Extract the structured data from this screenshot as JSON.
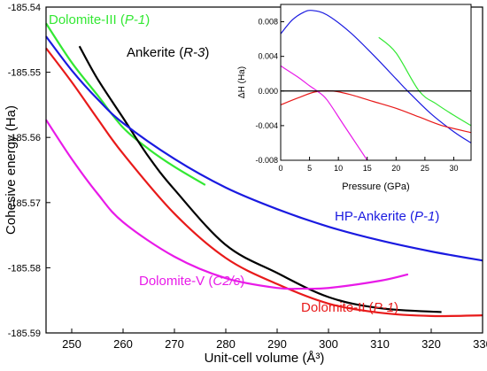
{
  "chart_data": [
    {
      "type": "line",
      "title": "",
      "xlabel": "Unit-cell volume (Å³)",
      "ylabel": "Cohesive energy (Ha)",
      "xlim": [
        245,
        330
      ],
      "ylim": [
        -185.59,
        -185.54
      ],
      "xticks": [
        250,
        260,
        270,
        280,
        290,
        300,
        310,
        320,
        330
      ],
      "yticks": [
        -185.54,
        -185.55,
        -185.56,
        -185.57,
        -185.58,
        -185.59
      ],
      "grid": false,
      "legend": "none",
      "series": [
        {
          "name": "Dolomite-III",
          "name_suffix": "P-1",
          "color": "#33e833",
          "points": [
            [
              245,
              -185.5425
            ],
            [
              250,
              -185.5485
            ],
            [
              255,
              -185.5535
            ],
            [
              260,
              -185.5585
            ],
            [
              265,
              -185.5618
            ],
            [
              270,
              -185.5645
            ],
            [
              276,
              -185.5673
            ]
          ]
        },
        {
          "name": "Ankerite",
          "name_suffix": "R-3",
          "color": "#000000",
          "points": [
            [
              251.5,
              -185.546
            ],
            [
              255,
              -185.551
            ],
            [
              260,
              -185.557
            ],
            [
              265,
              -185.563
            ],
            [
              270,
              -185.568
            ],
            [
              280,
              -185.5765
            ],
            [
              290,
              -185.5808
            ],
            [
              300,
              -185.5845
            ],
            [
              310,
              -185.5862
            ],
            [
              322,
              -185.5868
            ]
          ]
        },
        {
          "name": "HP-Ankerite",
          "name_suffix": "P-1",
          "color": "#1a1ae0",
          "points": [
            [
              245,
              -185.5445
            ],
            [
              250,
              -185.5497
            ],
            [
              255,
              -185.5541
            ],
            [
              260,
              -185.5578
            ],
            [
              270,
              -185.5633
            ],
            [
              280,
              -185.5677
            ],
            [
              290,
              -185.571
            ],
            [
              300,
              -185.5737
            ],
            [
              310,
              -185.5758
            ],
            [
              320,
              -185.5775
            ],
            [
              330,
              -185.5789
            ]
          ]
        },
        {
          "name": "Dolomite-II",
          "name_suffix": "P-1",
          "color": "#e81a1a",
          "points": [
            [
              245,
              -185.5463
            ],
            [
              250,
              -185.5515
            ],
            [
              255,
              -185.5571
            ],
            [
              260,
              -185.5625
            ],
            [
              270,
              -185.5717
            ],
            [
              280,
              -185.5785
            ],
            [
              290,
              -185.5825
            ],
            [
              300,
              -185.5855
            ],
            [
              310,
              -185.5869
            ],
            [
              320,
              -185.5874
            ],
            [
              330,
              -185.5873
            ]
          ]
        },
        {
          "name": "Dolomite-V",
          "name_suffix": "C2/c",
          "color": "#e81ae8",
          "points": [
            [
              245,
              -185.5573
            ],
            [
              250,
              -185.5633
            ],
            [
              255,
              -185.5686
            ],
            [
              260,
              -185.573
            ],
            [
              270,
              -185.5783
            ],
            [
              280,
              -185.5816
            ],
            [
              290,
              -185.5831
            ],
            [
              295,
              -185.5832
            ],
            [
              300,
              -185.5831
            ],
            [
              310,
              -185.582
            ],
            [
              315.5,
              -185.581
            ]
          ]
        }
      ]
    },
    {
      "type": "line",
      "title": "",
      "xlabel": "Pressure (GPa)",
      "ylabel": "ΔH (Ha)",
      "xlim": [
        0,
        33
      ],
      "ylim": [
        -0.008,
        0.01
      ],
      "xticks": [
        0,
        5,
        10,
        15,
        20,
        25,
        30
      ],
      "yticks": [
        0.008,
        0.004,
        0.0,
        -0.004,
        -0.008
      ],
      "ytick_labels": [
        "0.008",
        "0.004",
        "0.000",
        "-0.004",
        "-0.008"
      ],
      "grid": false,
      "reference_line": 0,
      "series": [
        {
          "color": "#1a1ae0",
          "points": [
            [
              0,
              0.0066
            ],
            [
              2,
              0.0082
            ],
            [
              4,
              0.0091
            ],
            [
              5.5,
              0.0093
            ],
            [
              8,
              0.0088
            ],
            [
              12,
              0.0068
            ],
            [
              16,
              0.0042
            ],
            [
              20,
              0.0014
            ],
            [
              22,
              0.0
            ],
            [
              26,
              -0.0026
            ],
            [
              30,
              -0.0047
            ],
            [
              33,
              -0.006
            ]
          ]
        },
        {
          "color": "#33e833",
          "points": [
            [
              17,
              0.0062
            ],
            [
              20,
              0.0044
            ],
            [
              24,
              0.0
            ],
            [
              27,
              -0.0015
            ],
            [
              30,
              -0.0028
            ],
            [
              33,
              -0.004
            ]
          ]
        },
        {
          "color": "#e81a1a",
          "points": [
            [
              0,
              -0.0016
            ],
            [
              3,
              -0.0008
            ],
            [
              6,
              -0.0001
            ],
            [
              9,
              0.0
            ],
            [
              12,
              -0.0004
            ],
            [
              16,
              -0.0012
            ],
            [
              20,
              -0.002
            ],
            [
              24,
              -0.003
            ],
            [
              28,
              -0.004
            ],
            [
              33,
              -0.0048
            ]
          ]
        },
        {
          "color": "#e81ae8",
          "points": [
            [
              0,
              0.0029
            ],
            [
              3,
              0.0016
            ],
            [
              5,
              0.0006
            ],
            [
              6.3,
              0.0
            ],
            [
              8,
              -0.001
            ],
            [
              11,
              -0.004
            ],
            [
              14,
              -0.007
            ],
            [
              15,
              -0.008
            ]
          ]
        }
      ]
    }
  ]
}
